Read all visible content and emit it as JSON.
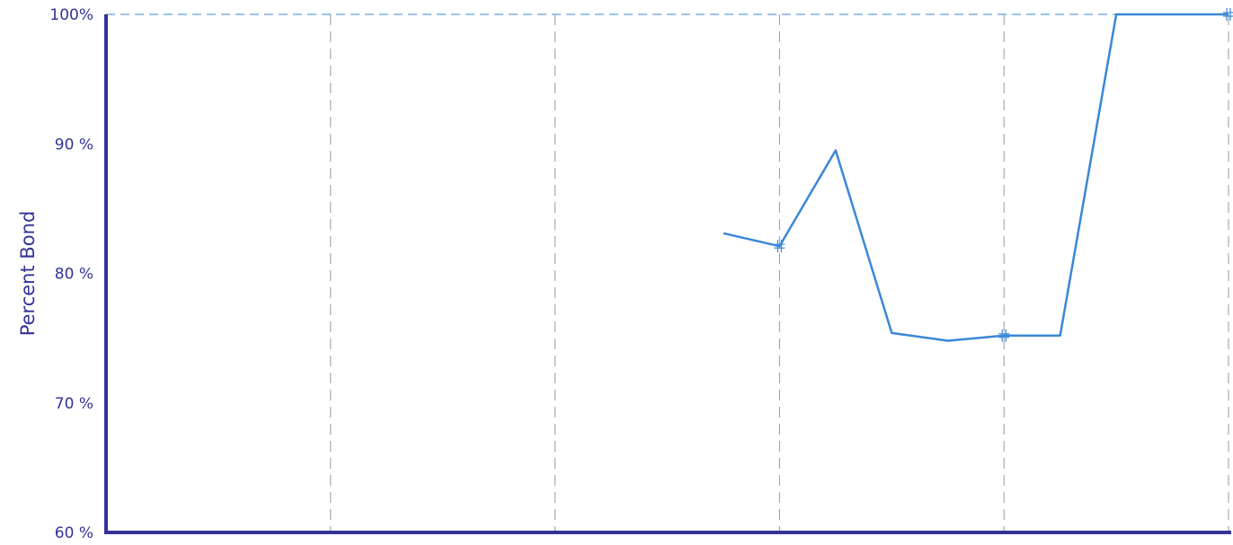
{
  "chart_data": {
    "type": "line",
    "title": "",
    "xlabel": "",
    "ylabel": "Percent Bond",
    "ylim": [
      60,
      100
    ],
    "xlim": [
      0,
      20
    ],
    "y_ticks": [
      {
        "value": 100,
        "label": "100%"
      },
      {
        "value": 90,
        "label": "90 %"
      },
      {
        "value": 80,
        "label": "80 %"
      },
      {
        "value": 70,
        "label": "70 %"
      },
      {
        "value": 60,
        "label": "60 %"
      }
    ],
    "x_gridlines": [
      4,
      8,
      12,
      16,
      20
    ],
    "grid": "vertical dashed gridlines; dashed reference line at 100%",
    "legend": "none",
    "series": [
      {
        "x": [
          11,
          12,
          13,
          14,
          15,
          16,
          17,
          18,
          19,
          20
        ],
        "values": [
          83.1,
          82.1,
          89.5,
          75.4,
          74.8,
          75.2,
          75.2,
          100,
          100,
          100
        ],
        "markers_at_x": [
          12,
          16,
          20
        ]
      }
    ],
    "colors": {
      "axis": "#333399",
      "line": "#3a87d8",
      "grid": "#9a9a9a",
      "reference_line": "#3a87d8"
    }
  }
}
